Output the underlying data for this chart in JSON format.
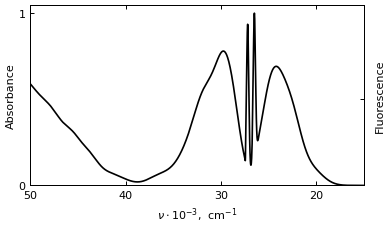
{
  "ylabel_left": "Absorbance",
  "ylabel_right": "Fluorescence",
  "xlim": [
    50,
    15
  ],
  "ylim": [
    0,
    1.05
  ],
  "xticks": [
    50,
    40,
    30,
    20
  ],
  "yticks_left": [
    0,
    1
  ],
  "yticks_right": [
    0.5
  ],
  "background_color": "#ffffff",
  "line_color": "#000000",
  "linewidth": 1.2
}
